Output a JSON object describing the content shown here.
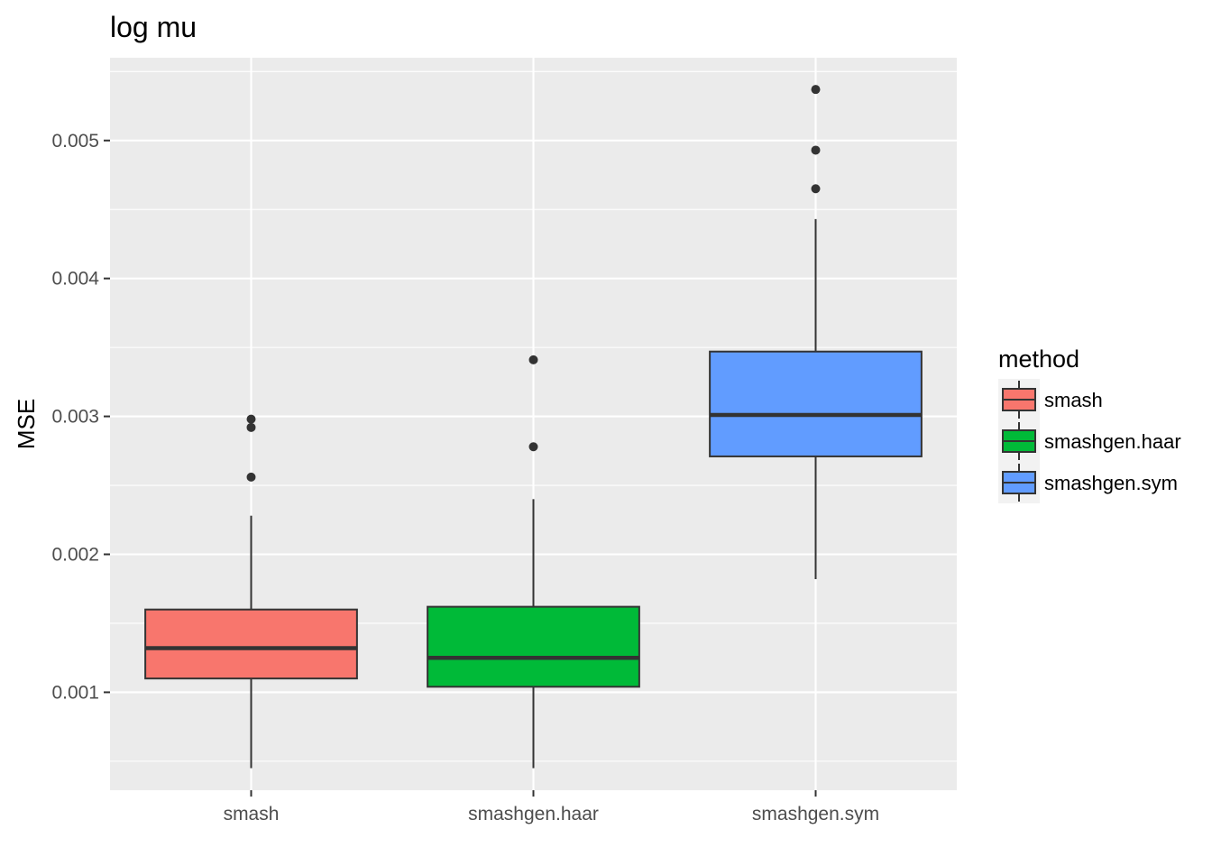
{
  "chart_data": {
    "type": "boxplot",
    "title": "log mu",
    "xlabel": "",
    "ylabel": "MSE",
    "ylim": [
      0.00029,
      0.0056
    ],
    "y_ticks": [
      0.001,
      0.002,
      0.003,
      0.004,
      0.005
    ],
    "y_tick_labels": [
      "0.001",
      "0.002",
      "0.003",
      "0.004",
      "0.005"
    ],
    "grid": true,
    "panel_background": "#ebebeb",
    "categories": [
      "smash",
      "smashgen.haar",
      "smashgen.sym"
    ],
    "boxes": [
      {
        "category": "smash",
        "lower_whisker": 0.00045,
        "q1": 0.0011,
        "median": 0.00132,
        "q3": 0.0016,
        "upper_whisker": 0.00228,
        "outliers": [
          0.00298,
          0.00292,
          0.00256
        ],
        "fill": "#f8766d"
      },
      {
        "category": "smashgen.haar",
        "lower_whisker": 0.00045,
        "q1": 0.00104,
        "median": 0.00125,
        "q3": 0.00162,
        "upper_whisker": 0.0024,
        "outliers": [
          0.00341,
          0.00278
        ],
        "fill": "#00ba38"
      },
      {
        "category": "smashgen.sym",
        "lower_whisker": 0.00182,
        "q1": 0.00271,
        "median": 0.00301,
        "q3": 0.00347,
        "upper_whisker": 0.00443,
        "outliers": [
          0.00537,
          0.00493,
          0.00465
        ],
        "fill": "#619cff"
      }
    ],
    "legend": {
      "title": "method",
      "position": "right",
      "items": [
        {
          "label": "smash",
          "fill": "#f8766d"
        },
        {
          "label": "smashgen.haar",
          "fill": "#00ba38"
        },
        {
          "label": "smashgen.sym",
          "fill": "#619cff"
        }
      ]
    }
  }
}
